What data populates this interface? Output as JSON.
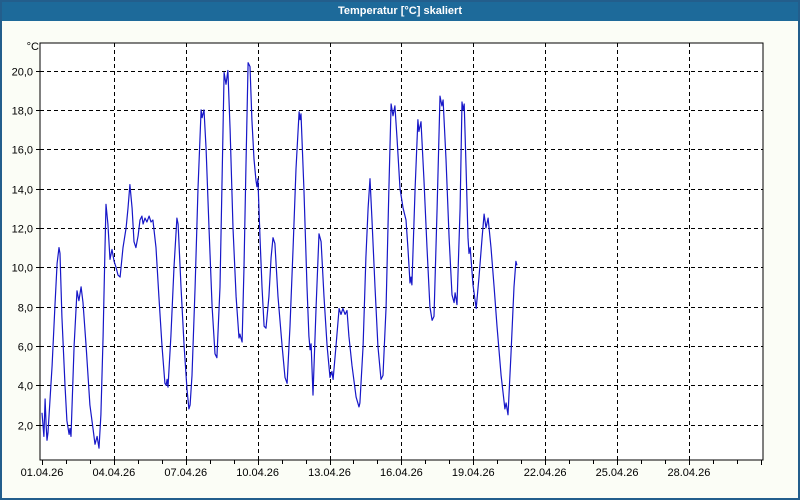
{
  "window": {
    "title": "Temperatur [°C] skaliert"
  },
  "colors": {
    "titlebar": "#1d6a9a",
    "window_border": "#235e8c",
    "background": "#fbfdf6",
    "plot_background": "#ffffff",
    "grid": "#000000",
    "line": "#1717c8"
  },
  "chart_data": {
    "type": "line",
    "title": "Temperatur [°C] skaliert",
    "unit_label": "°C",
    "grid": "dashed",
    "legend": "none",
    "y_range": [
      0.2,
      21.4
    ],
    "y_tick_values": [
      2,
      4,
      6,
      8,
      10,
      12,
      14,
      16,
      18,
      20
    ],
    "y_tick_labels": [
      "2,0",
      "4,0",
      "6,0",
      "8,0",
      "10,0",
      "12,0",
      "14,0",
      "16,0",
      "18,0",
      "20,0"
    ],
    "x_range_days": [
      -0.1,
      30.1
    ],
    "x_tick_days": [
      0,
      3,
      6,
      9,
      12,
      15,
      18,
      21,
      24,
      27
    ],
    "x_tick_labels": [
      "01.04.26",
      "04.04.26",
      "07.04.26",
      "10.04.26",
      "13.04.26",
      "16.04.26",
      "19.04.26",
      "22.04.26",
      "25.04.26",
      "28.04.26"
    ],
    "x_minor_tick_interval_days": 1,
    "series": [
      {
        "name": "Temperatur",
        "points": [
          [
            0.0,
            2.6
          ],
          [
            0.08,
            1.4
          ],
          [
            0.13,
            3.3
          ],
          [
            0.17,
            2.0
          ],
          [
            0.21,
            1.2
          ],
          [
            0.25,
            1.6
          ],
          [
            0.42,
            5.0
          ],
          [
            0.54,
            8.0
          ],
          [
            0.63,
            10.2
          ],
          [
            0.71,
            11.0
          ],
          [
            0.75,
            10.7
          ],
          [
            0.83,
            7.5
          ],
          [
            0.96,
            4.0
          ],
          [
            1.04,
            2.2
          ],
          [
            1.13,
            1.5
          ],
          [
            1.17,
            1.8
          ],
          [
            1.21,
            1.4
          ],
          [
            1.34,
            6.0
          ],
          [
            1.46,
            8.8
          ],
          [
            1.54,
            8.3
          ],
          [
            1.63,
            9.0
          ],
          [
            1.71,
            8.2
          ],
          [
            1.84,
            6.0
          ],
          [
            2.0,
            3.0
          ],
          [
            2.13,
            1.8
          ],
          [
            2.21,
            1.0
          ],
          [
            2.3,
            1.4
          ],
          [
            2.38,
            0.8
          ],
          [
            2.46,
            2.5
          ],
          [
            2.55,
            6.5
          ],
          [
            2.63,
            11.0
          ],
          [
            2.67,
            13.2
          ],
          [
            2.75,
            12.2
          ],
          [
            2.84,
            10.4
          ],
          [
            2.92,
            10.9
          ],
          [
            3.01,
            10.3
          ],
          [
            3.09,
            10.0
          ],
          [
            3.17,
            9.6
          ],
          [
            3.26,
            9.5
          ],
          [
            3.38,
            11.0
          ],
          [
            3.51,
            12.0
          ],
          [
            3.59,
            13.0
          ],
          [
            3.67,
            14.2
          ],
          [
            3.76,
            13.0
          ],
          [
            3.84,
            11.3
          ],
          [
            3.92,
            11.0
          ],
          [
            4.01,
            11.6
          ],
          [
            4.09,
            12.4
          ],
          [
            4.17,
            12.6
          ],
          [
            4.22,
            12.2
          ],
          [
            4.3,
            12.5
          ],
          [
            4.38,
            12.3
          ],
          [
            4.47,
            12.6
          ],
          [
            4.55,
            12.3
          ],
          [
            4.63,
            12.4
          ],
          [
            4.76,
            11.0
          ],
          [
            4.88,
            8.5
          ],
          [
            5.01,
            6.0
          ],
          [
            5.13,
            4.1
          ],
          [
            5.18,
            4.0
          ],
          [
            5.22,
            4.3
          ],
          [
            5.26,
            3.9
          ],
          [
            5.38,
            6.5
          ],
          [
            5.51,
            10.0
          ],
          [
            5.63,
            12.5
          ],
          [
            5.68,
            12.2
          ],
          [
            5.8,
            9.0
          ],
          [
            5.93,
            6.0
          ],
          [
            6.05,
            3.8
          ],
          [
            6.13,
            2.8
          ],
          [
            6.18,
            3.0
          ],
          [
            6.26,
            4.5
          ],
          [
            6.39,
            9.0
          ],
          [
            6.51,
            14.0
          ],
          [
            6.64,
            18.0
          ],
          [
            6.68,
            17.6
          ],
          [
            6.76,
            18.0
          ],
          [
            6.85,
            16.0
          ],
          [
            6.97,
            12.0
          ],
          [
            7.1,
            8.0
          ],
          [
            7.22,
            5.6
          ],
          [
            7.3,
            5.4
          ],
          [
            7.43,
            9.0
          ],
          [
            7.51,
            14.0
          ],
          [
            7.6,
            19.9
          ],
          [
            7.68,
            19.3
          ],
          [
            7.76,
            20.0
          ],
          [
            7.85,
            17.0
          ],
          [
            7.97,
            12.0
          ],
          [
            8.1,
            8.5
          ],
          [
            8.22,
            6.4
          ],
          [
            8.26,
            6.6
          ],
          [
            8.35,
            6.2
          ],
          [
            8.43,
            10.0
          ],
          [
            8.51,
            15.0
          ],
          [
            8.6,
            20.4
          ],
          [
            8.68,
            20.2
          ],
          [
            8.76,
            17.5
          ],
          [
            8.85,
            15.5
          ],
          [
            8.93,
            14.4
          ],
          [
            8.97,
            14.1
          ],
          [
            9.01,
            14.5
          ],
          [
            9.1,
            11.5
          ],
          [
            9.18,
            9.0
          ],
          [
            9.27,
            7.0
          ],
          [
            9.35,
            6.9
          ],
          [
            9.47,
            8.5
          ],
          [
            9.56,
            10.5
          ],
          [
            9.64,
            11.5
          ],
          [
            9.72,
            11.2
          ],
          [
            9.85,
            8.5
          ],
          [
            10.02,
            6.0
          ],
          [
            10.14,
            4.4
          ],
          [
            10.23,
            4.1
          ],
          [
            10.35,
            7.0
          ],
          [
            10.48,
            11.0
          ],
          [
            10.6,
            15.0
          ],
          [
            10.73,
            17.9
          ],
          [
            10.77,
            17.5
          ],
          [
            10.81,
            17.8
          ],
          [
            10.93,
            14.0
          ],
          [
            11.06,
            9.0
          ],
          [
            11.14,
            6.5
          ],
          [
            11.19,
            5.8
          ],
          [
            11.23,
            6.1
          ],
          [
            11.31,
            3.5
          ],
          [
            11.44,
            8.0
          ],
          [
            11.56,
            11.7
          ],
          [
            11.65,
            11.3
          ],
          [
            11.77,
            8.5
          ],
          [
            11.9,
            6.0
          ],
          [
            12.02,
            4.4
          ],
          [
            12.1,
            4.7
          ],
          [
            12.15,
            4.3
          ],
          [
            12.27,
            6.0
          ],
          [
            12.4,
            7.9
          ],
          [
            12.48,
            7.6
          ],
          [
            12.56,
            7.9
          ],
          [
            12.65,
            7.6
          ],
          [
            12.73,
            7.8
          ],
          [
            12.81,
            6.5
          ],
          [
            12.94,
            5.0
          ],
          [
            13.11,
            3.4
          ],
          [
            13.23,
            2.9
          ],
          [
            13.27,
            3.1
          ],
          [
            13.4,
            6.0
          ],
          [
            13.52,
            10.5
          ],
          [
            13.61,
            13.0
          ],
          [
            13.69,
            14.5
          ],
          [
            13.77,
            12.5
          ],
          [
            13.9,
            9.0
          ],
          [
            14.02,
            6.0
          ],
          [
            14.15,
            4.3
          ],
          [
            14.23,
            4.5
          ],
          [
            14.36,
            8.0
          ],
          [
            14.48,
            14.0
          ],
          [
            14.57,
            18.3
          ],
          [
            14.65,
            17.7
          ],
          [
            14.73,
            18.2
          ],
          [
            14.82,
            16.5
          ],
          [
            14.94,
            14.0
          ],
          [
            15.07,
            13.0
          ],
          [
            15.19,
            12.4
          ],
          [
            15.27,
            11.0
          ],
          [
            15.36,
            9.2
          ],
          [
            15.4,
            9.5
          ],
          [
            15.44,
            9.1
          ],
          [
            15.57,
            14.0
          ],
          [
            15.69,
            17.5
          ],
          [
            15.73,
            16.9
          ],
          [
            15.82,
            17.4
          ],
          [
            15.94,
            14.5
          ],
          [
            16.07,
            11.0
          ],
          [
            16.19,
            8.0
          ],
          [
            16.28,
            7.3
          ],
          [
            16.36,
            7.5
          ],
          [
            16.49,
            13.0
          ],
          [
            16.61,
            18.7
          ],
          [
            16.69,
            18.2
          ],
          [
            16.74,
            18.5
          ],
          [
            16.86,
            15.5
          ],
          [
            16.99,
            11.5
          ],
          [
            17.11,
            8.6
          ],
          [
            17.2,
            8.2
          ],
          [
            17.24,
            8.7
          ],
          [
            17.32,
            8.1
          ],
          [
            17.45,
            13.0
          ],
          [
            17.53,
            18.4
          ],
          [
            17.57,
            18.0
          ],
          [
            17.62,
            18.3
          ],
          [
            17.7,
            15.0
          ],
          [
            17.78,
            11.5
          ],
          [
            17.82,
            10.7
          ],
          [
            17.87,
            11.0
          ],
          [
            17.99,
            9.1
          ],
          [
            18.12,
            7.9
          ],
          [
            18.24,
            9.5
          ],
          [
            18.37,
            11.5
          ],
          [
            18.45,
            12.7
          ],
          [
            18.53,
            12.0
          ],
          [
            18.62,
            12.5
          ],
          [
            18.74,
            11.0
          ],
          [
            18.87,
            9.0
          ],
          [
            18.99,
            7.0
          ],
          [
            19.16,
            4.5
          ],
          [
            19.32,
            2.8
          ],
          [
            19.37,
            3.1
          ],
          [
            19.45,
            2.5
          ],
          [
            19.57,
            5.5
          ],
          [
            19.7,
            9.0
          ],
          [
            19.78,
            10.3
          ],
          [
            19.82,
            10.1
          ]
        ]
      }
    ]
  }
}
